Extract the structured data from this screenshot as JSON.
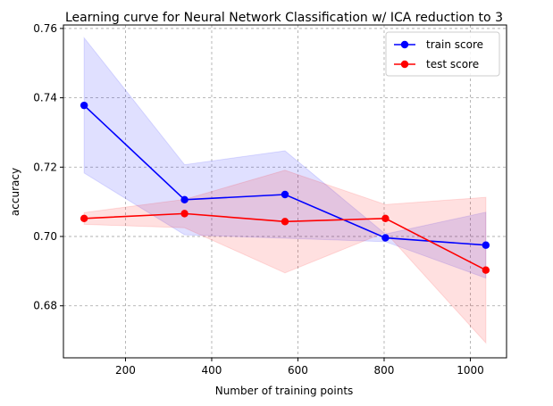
{
  "chart_data": {
    "type": "line",
    "title": "Learning curve for Neural Network Classification w/ ICA reduction to 3",
    "xlabel": "Number of training points",
    "ylabel": "accuracy",
    "xlim": [
      56,
      1084
    ],
    "ylim": [
      0.665,
      0.761
    ],
    "xticks": [
      200,
      400,
      600,
      800,
      1000
    ],
    "yticks": [
      0.68,
      0.7,
      0.72,
      0.74,
      0.76
    ],
    "ytick_labels": [
      "0.68",
      "0.70",
      "0.72",
      "0.74",
      "0.76"
    ],
    "grid": true,
    "legend_position": "top-right",
    "x": [
      104,
      337,
      570,
      803,
      1036
    ],
    "series": [
      {
        "name": "train score",
        "color": "#0000ff",
        "values": [
          0.7378,
          0.7106,
          0.7121,
          0.6996,
          0.6975
        ],
        "lower": [
          0.7183,
          0.7005,
          0.6995,
          0.6985,
          0.688
        ],
        "upper": [
          0.7573,
          0.7207,
          0.7247,
          0.7007,
          0.707
        ]
      },
      {
        "name": "test score",
        "color": "#ff0000",
        "values": [
          0.7052,
          0.7066,
          0.7043,
          0.7052,
          0.6903
        ],
        "lower": [
          0.7035,
          0.7025,
          0.6895,
          0.7012,
          0.6693
        ],
        "upper": [
          0.7069,
          0.7107,
          0.7191,
          0.7092,
          0.7113
        ]
      }
    ]
  }
}
